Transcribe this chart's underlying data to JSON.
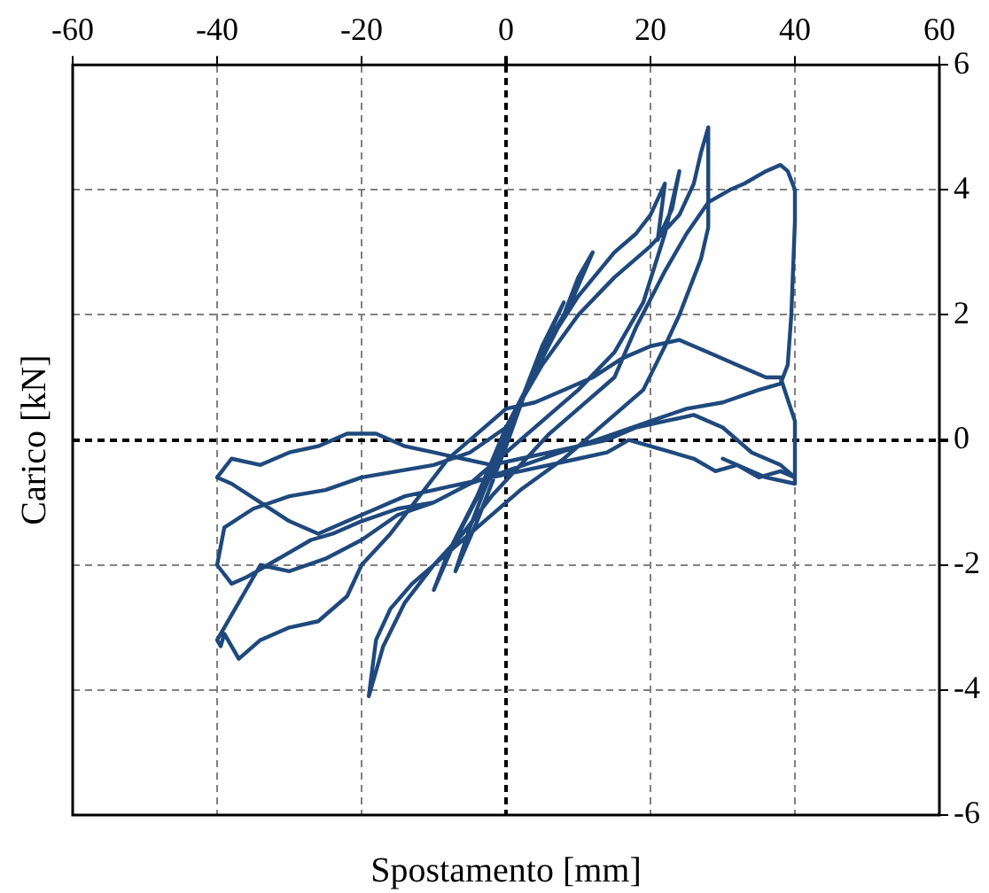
{
  "chart_data": {
    "type": "line",
    "xlabel": "Spostamento [mm]",
    "ylabel": "Carico [kN]",
    "xlim": [
      -60,
      60
    ],
    "ylim": [
      -6,
      6
    ],
    "xticks": [
      -60,
      -40,
      -20,
      0,
      20,
      40,
      60
    ],
    "yticks": [
      -6,
      -4,
      -2,
      0,
      2,
      4,
      6
    ],
    "grid": true,
    "legend": false,
    "marker": "none",
    "line_style": "solid",
    "series": [
      {
        "color": "#1f497d",
        "x": [
          0,
          3,
          5,
          8,
          4,
          0,
          -3,
          -5,
          -7,
          -4,
          0,
          4,
          8,
          10,
          12,
          9,
          5,
          0,
          -4,
          -8,
          -10,
          -7,
          -3,
          0,
          5,
          10,
          15,
          18,
          20,
          22,
          21,
          23,
          24,
          22,
          19,
          15,
          10,
          5,
          0,
          -5,
          -10,
          -15,
          -20,
          -24,
          -27,
          -30,
          -33,
          -36,
          -38,
          -40,
          -39,
          -35,
          -30,
          -25,
          -20,
          -15,
          -10,
          -5,
          0,
          5,
          10,
          15,
          20,
          24,
          26,
          27,
          28,
          28,
          27,
          26,
          24,
          22,
          19,
          14,
          8,
          2,
          -3,
          -8,
          -13,
          -16,
          -18,
          -19,
          -17,
          -14,
          -10,
          -6,
          -2,
          2,
          6,
          10,
          15,
          18,
          22,
          25,
          28,
          31,
          33,
          36,
          38,
          39,
          40,
          40,
          39.5,
          39,
          38,
          35,
          30,
          25,
          20,
          15,
          10,
          5,
          0,
          -5,
          -10,
          -15,
          -20,
          -25,
          -30,
          -34,
          -38,
          -40,
          -39.5,
          -39,
          -37,
          -34,
          -30,
          -26,
          -22,
          -20,
          -16,
          -12,
          -8,
          -4,
          0,
          4,
          8,
          12,
          16,
          20,
          24,
          28,
          32,
          36,
          38,
          40,
          40,
          38,
          35,
          32,
          29,
          26,
          23,
          20,
          17,
          14,
          10,
          6,
          2,
          -2,
          -6,
          -10,
          -14,
          -18,
          -22,
          -26,
          -30,
          -34,
          -38,
          -40,
          -38,
          -34,
          -30,
          -26,
          -22,
          -18,
          -14,
          -10,
          -6,
          -2,
          2,
          6,
          10,
          14,
          18,
          22,
          26,
          30,
          34,
          38,
          40,
          40,
          36,
          30
        ],
        "values": [
          0,
          0.9,
          1.5,
          2.2,
          1.2,
          0,
          -0.8,
          -1.4,
          -2.1,
          -1.3,
          -0.1,
          1.2,
          2.0,
          2.6,
          3.0,
          2.2,
          1.3,
          0.2,
          -0.9,
          -1.8,
          -2.4,
          -1.6,
          -0.7,
          0.1,
          1.4,
          2.3,
          3.0,
          3.3,
          3.6,
          4.1,
          3.2,
          3.7,
          4.3,
          3.3,
          2.2,
          1.4,
          0.8,
          0.3,
          -0.2,
          -0.7,
          -1.0,
          -1.1,
          -1.3,
          -1.5,
          -1.6,
          -1.8,
          -2.0,
          -2.2,
          -2.3,
          -2.0,
          -1.4,
          -1.1,
          -0.9,
          -0.8,
          -0.6,
          -0.5,
          -0.4,
          -0.2,
          0.2,
          1.2,
          2.0,
          2.6,
          3.1,
          3.6,
          4.1,
          4.6,
          5.0,
          3.4,
          2.9,
          2.6,
          2.0,
          1.5,
          0.8,
          0.3,
          -0.3,
          -0.8,
          -1.3,
          -1.8,
          -2.3,
          -2.7,
          -3.2,
          -4.1,
          -3.3,
          -2.6,
          -2.0,
          -1.5,
          -0.9,
          -0.4,
          0.1,
          0.5,
          1.0,
          1.8,
          2.7,
          3.3,
          3.8,
          4.0,
          4.1,
          4.3,
          4.4,
          4.3,
          4.0,
          3.5,
          2.0,
          1.2,
          0.9,
          0.8,
          0.6,
          0.5,
          0.3,
          0.1,
          -0.1,
          -0.3,
          -0.5,
          -0.7,
          -1.0,
          -1.2,
          -1.6,
          -1.9,
          -2.1,
          -2.0,
          -2.8,
          -3.2,
          -3.3,
          -3.1,
          -3.5,
          -3.2,
          -3.0,
          -2.9,
          -2.5,
          -2.0,
          -1.5,
          -0.9,
          -0.3,
          0.1,
          0.5,
          0.6,
          0.8,
          1.0,
          1.3,
          1.5,
          1.6,
          1.4,
          1.2,
          1.0,
          1.0,
          0.3,
          -0.6,
          -0.5,
          -0.6,
          -0.4,
          -0.5,
          -0.3,
          -0.2,
          -0.1,
          0,
          -0.2,
          -0.3,
          -0.4,
          -0.5,
          -0.6,
          -0.7,
          -0.8,
          -0.9,
          -1.1,
          -1.3,
          -1.5,
          -1.3,
          -1.0,
          -0.7,
          -0.6,
          -0.3,
          -0.4,
          -0.2,
          -0.1,
          0.1,
          0.1,
          -0.1,
          -0.2,
          -0.3,
          -0.4,
          -0.3,
          -0.2,
          -0.1,
          0,
          0.2,
          0.3,
          0.4,
          0.2,
          -0.2,
          -0.4,
          -0.6,
          -0.7,
          -0.6,
          -0.3
        ]
      }
    ]
  }
}
